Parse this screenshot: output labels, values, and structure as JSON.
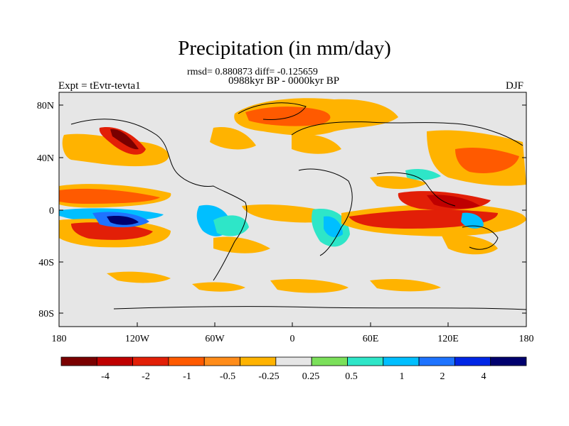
{
  "title": "Precipitation (in mm/day)",
  "stats_line": "rmsd= 0.880873 diff= -0.125659",
  "period": "0988kyr BP - 0000kyr BP",
  "experiment": "Expt = tEvtr-tevta1",
  "season": "DJF",
  "lat_ticks": [
    "80N",
    "40N",
    "0",
    "40S",
    "80S"
  ],
  "lon_ticks": [
    "180",
    "120W",
    "60W",
    "0",
    "60E",
    "120E",
    "180"
  ],
  "colorbar": {
    "colors": [
      "#7a0000",
      "#bf0000",
      "#e21f07",
      "#ff5a00",
      "#ff8c1a",
      "#ffb300",
      "#e6e6e6",
      "#7be05a",
      "#2ee6c8",
      "#00bfff",
      "#1e73ff",
      "#0026e6",
      "#00006e"
    ],
    "labels": [
      "-4",
      "-2",
      "-1",
      "-0.5",
      "-0.25",
      "0.25",
      "0.5",
      "1",
      "2",
      "4"
    ]
  },
  "colors": {
    "neutral": "#e6e6e6",
    "coastline": "#000000"
  }
}
